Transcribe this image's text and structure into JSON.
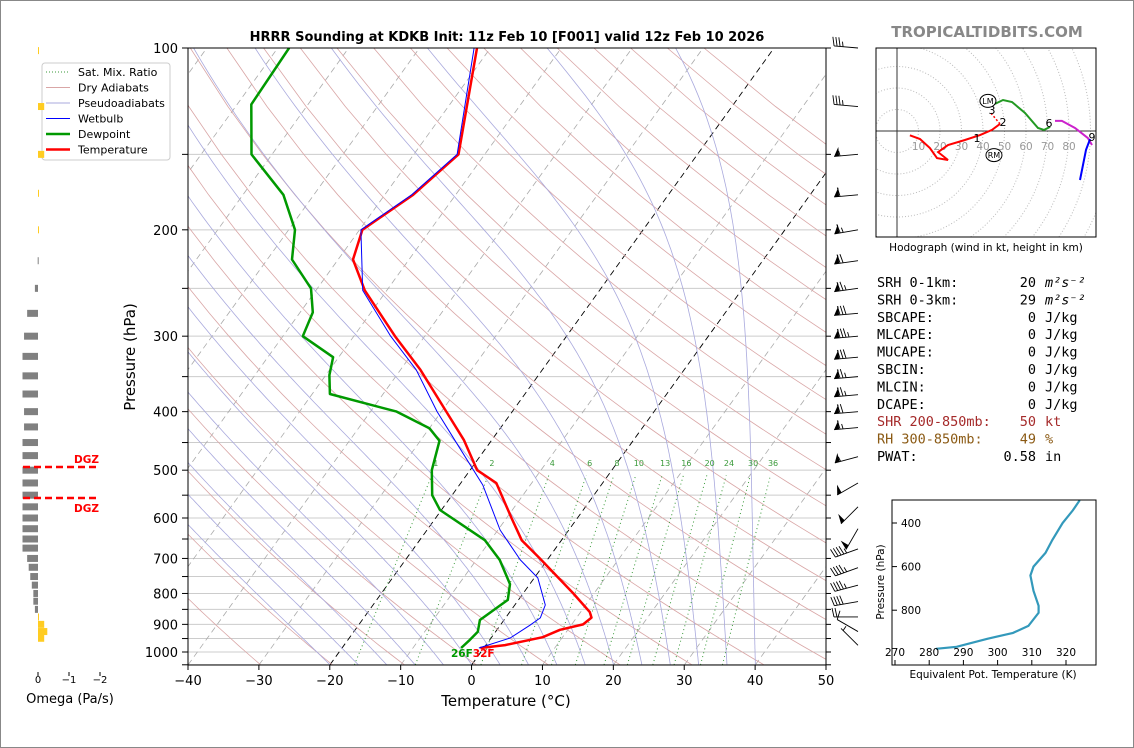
{
  "site": "TROPICALTIDBITS.COM",
  "colors": {
    "temperature": "#ff0000",
    "dewpoint": "#009900",
    "wetbulb": "#0000ff",
    "dry": "#d9a6a6",
    "moist": "#a9a9dd",
    "mixing": "#3a9a3a",
    "shear": "#a52a2a",
    "rh": "#8b5a14",
    "thetae": "#3399bb",
    "omega_pos": "#808080",
    "omega_neg": "#ffcc22"
  },
  "chart_data": [
    {
      "type": "line",
      "name": "skewt",
      "title": "HRRR Sounding at KDKB Init: 11z Feb 10 [F001] valid 12z Feb 10 2026",
      "xlabel": "Temperature (°C)",
      "ylabel": "Pressure (hPa)",
      "xlim": [
        -40,
        50
      ],
      "ylim": [
        1050,
        100
      ],
      "xticks": [
        "−40",
        "−30",
        "−20",
        "−10",
        "0",
        "10",
        "20",
        "30",
        "40",
        "50"
      ],
      "yticks": [
        "100",
        "200",
        "300",
        "400",
        "500",
        "600",
        "700",
        "800",
        "900",
        "1000"
      ],
      "legend": {
        "placement": "top-left",
        "entries": [
          "Sat. Mix. Ratio",
          "Dry Adiabats",
          "Pseudoadiabats",
          "Wetbulb",
          "Dewpoint",
          "Temperature"
        ]
      },
      "mixing_ratio_labels": [
        "1",
        "2",
        "4",
        "6",
        "8",
        "10",
        "13",
        "16",
        "20",
        "24",
        "30",
        "36"
      ],
      "surface_label": {
        "dewpoint": "26F",
        "temperature": "32F"
      },
      "series": [
        {
          "name": "Temperature",
          "points": [
            [
              100,
              -61.9
            ],
            [
              150,
              -53.7
            ],
            [
              175,
              -56
            ],
            [
              200,
              -59.6
            ],
            [
              224,
              -57.9
            ],
            [
              252,
              -53.1
            ],
            [
              300,
              -44.2
            ],
            [
              341,
              -37.2
            ],
            [
              400,
              -29.3
            ],
            [
              446,
              -23.9
            ],
            [
              500,
              -19
            ],
            [
              525,
              -15
            ],
            [
              600,
              -9.3
            ],
            [
              653,
              -5.6
            ],
            [
              700,
              -1.2
            ],
            [
              800,
              7.1
            ],
            [
              859,
              11.3
            ],
            [
              877,
              12.1
            ],
            [
              900,
              11.6
            ],
            [
              919,
              8.9
            ],
            [
              945,
              7.2
            ],
            [
              974,
              2.7
            ],
            [
              985,
              -0.5
            ]
          ]
        },
        {
          "name": "Dewpoint",
          "points": [
            [
              100,
              -88.4
            ],
            [
              124,
              -88
            ],
            [
              150,
              -82.9
            ],
            [
              175,
              -74.3
            ],
            [
              200,
              -69.1
            ],
            [
              224,
              -66.5
            ],
            [
              250,
              -60.9
            ],
            [
              274,
              -58.2
            ],
            [
              300,
              -57.2
            ],
            [
              325,
              -50.8
            ],
            [
              348,
              -49.5
            ],
            [
              374,
              -47.5
            ],
            [
              400,
              -36.3
            ],
            [
              426,
              -30
            ],
            [
              447,
              -27.3
            ],
            [
              500,
              -25.4
            ],
            [
              550,
              -22.8
            ],
            [
              582,
              -20.2
            ],
            [
              653,
              -10.8
            ],
            [
              704,
              -6.7
            ],
            [
              772,
              -2.8
            ],
            [
              820,
              -1.5
            ],
            [
              885,
              -3.4
            ],
            [
              926,
              -2.5
            ],
            [
              955,
              -2.8
            ],
            [
              985,
              -3.2
            ]
          ]
        },
        {
          "name": "Wetbulb",
          "points": [
            [
              100,
              -62.3
            ],
            [
              150,
              -53.9
            ],
            [
              175,
              -56.2
            ],
            [
              200,
              -59.8
            ],
            [
              252,
              -53.4
            ],
            [
              300,
              -44.8
            ],
            [
              341,
              -37.8
            ],
            [
              400,
              -30.6
            ],
            [
              446,
              -25.2
            ],
            [
              529,
              -16.7
            ],
            [
              628,
              -9.7
            ],
            [
              704,
              -3.8
            ],
            [
              754,
              0.5
            ],
            [
              836,
              4.3
            ],
            [
              878,
              4.9
            ],
            [
              903,
              4.2
            ],
            [
              948,
              2.7
            ],
            [
              985,
              -0.7
            ]
          ]
        }
      ],
      "winds_kt": [
        [
          100,
          275,
          35
        ],
        [
          125,
          275,
          35
        ],
        [
          150,
          265,
          55
        ],
        [
          175,
          265,
          60
        ],
        [
          200,
          260,
          65
        ],
        [
          225,
          262,
          70
        ],
        [
          250,
          262,
          75
        ],
        [
          275,
          265,
          80
        ],
        [
          300,
          265,
          85
        ],
        [
          325,
          265,
          80
        ],
        [
          350,
          265,
          75
        ],
        [
          375,
          265,
          75
        ],
        [
          400,
          265,
          70
        ],
        [
          425,
          265,
          65
        ],
        [
          475,
          255,
          55
        ],
        [
          525,
          240,
          50
        ],
        [
          575,
          225,
          50
        ],
        [
          625,
          210,
          50
        ],
        [
          675,
          250,
          45
        ],
        [
          725,
          250,
          45
        ],
        [
          775,
          255,
          45
        ],
        [
          825,
          260,
          40
        ],
        [
          875,
          270,
          20
        ],
        [
          925,
          300,
          10
        ],
        [
          975,
          315,
          5
        ]
      ]
    },
    {
      "type": "bar",
      "name": "omega",
      "xlabel": "Omega (Pa/s)",
      "xticks": [
        "0",
        "−1",
        "−2"
      ],
      "xlim": [
        0.5,
        -2.2
      ],
      "dgz_label": "DGZ",
      "dgz_bounds_hpa": [
        494,
        556
      ],
      "pressure": [
        101,
        125,
        150,
        174,
        200,
        225,
        250,
        275,
        300,
        324,
        349,
        374,
        400,
        424,
        450,
        473,
        500,
        525,
        550,
        575,
        600,
        625,
        650,
        673,
        700,
        724,
        750,
        775,
        800,
        824,
        850,
        875,
        900,
        925,
        949
      ],
      "values": [
        -0.03,
        -0.2,
        -0.2,
        -0.03,
        -0.01,
        0.01,
        0.1,
        0.35,
        0.45,
        0.5,
        0.5,
        0.5,
        0.45,
        0.45,
        0.5,
        0.5,
        0.5,
        0.5,
        0.5,
        0.5,
        0.5,
        0.5,
        0.5,
        0.5,
        0.35,
        0.3,
        0.25,
        0.2,
        0.15,
        0.15,
        0.1,
        -0.02,
        -0.2,
        -0.3,
        -0.2
      ]
    },
    {
      "type": "line",
      "name": "hodograph",
      "xlabel": "Hodograph (wind in kt, height in km)",
      "ring_labels": [
        "10",
        "20",
        "30",
        "40",
        "50",
        "60",
        "70",
        "80"
      ],
      "segments": [
        {
          "layer": "0-3km",
          "color": "#ff0000",
          "points": [
            [
              6,
              -2
            ],
            [
              10.7,
              -3.7
            ],
            [
              15.3,
              -7.9
            ],
            [
              18.6,
              -12.6
            ],
            [
              23.7,
              -13.5
            ],
            [
              19.1,
              -9.8
            ],
            [
              23.7,
              -6.5
            ],
            [
              31.6,
              -4.2
            ],
            [
              38.6,
              -1.9
            ],
            [
              44.2,
              0.5
            ],
            [
              47.9,
              3.3
            ]
          ]
        },
        {
          "layer": "2-3km dashed",
          "color": "#ff0000",
          "points": [
            [
              47.9,
              3.3
            ],
            [
              43.3,
              8.8
            ]
          ]
        },
        {
          "layer": "3-6km",
          "color": "#229922",
          "points": [
            [
              45.6,
              12.6
            ],
            [
              49.3,
              14.4
            ],
            [
              53.5,
              13.5
            ],
            [
              59.5,
              8.4
            ],
            [
              65.6,
              1.4
            ],
            [
              68.4,
              0.5
            ],
            [
              71.2,
              1.9
            ]
          ]
        },
        {
          "layer": "6-9km",
          "color": "#cc22cc",
          "points": [
            [
              73.5,
              4.7
            ],
            [
              76.7,
              4.7
            ],
            [
              82.8,
              1.4
            ],
            [
              88.8,
              -3.3
            ],
            [
              90.7,
              -6.5
            ]
          ]
        },
        {
          "layer": "9+km",
          "color": "#0000ff",
          "points": [
            [
              89.8,
              -3.7
            ],
            [
              87.9,
              -8.8
            ],
            [
              85.1,
              -22.8
            ]
          ]
        }
      ],
      "height_labels": [
        {
          "text": "1",
          "u": 37.2,
          "v": -3.3
        },
        {
          "text": "2",
          "u": 49.3,
          "v": 4.2
        },
        {
          "text": "3",
          "u": 44.2,
          "v": 9.8
        },
        {
          "text": "6",
          "u": 70.7,
          "v": 3.7
        },
        {
          "text": "9",
          "u": 90.7,
          "v": -2.8
        }
      ],
      "storm_motion": [
        {
          "text": "LM",
          "u": 42.3,
          "v": 14
        },
        {
          "text": "RM",
          "u": 45.1,
          "v": -11.2
        }
      ]
    },
    {
      "type": "line",
      "name": "theta-e",
      "xlabel": "Equivalent Pot. Temperature (K)",
      "ylabel": "Pressure (hPa)",
      "xlim": [
        268,
        328
      ],
      "ylim": [
        1030,
        296
      ],
      "xticks": [
        "270",
        "280",
        "290",
        "300",
        "310",
        "320"
      ],
      "yticks": [
        "400",
        "600",
        "800"
      ],
      "points": [
        [
          296,
          324
        ],
        [
          342,
          322
        ],
        [
          400,
          319
        ],
        [
          478,
          316
        ],
        [
          537,
          314
        ],
        [
          600,
          310.5
        ],
        [
          641,
          309.6
        ],
        [
          711,
          310.5
        ],
        [
          780,
          312
        ],
        [
          812,
          312
        ],
        [
          872,
          309
        ],
        [
          904,
          304.5
        ],
        [
          931,
          297
        ],
        [
          968,
          288
        ],
        [
          977,
          282
        ]
      ]
    }
  ],
  "indices": [
    {
      "label": "SRH 0-1km:",
      "value": "20",
      "unit": "m²s⁻²",
      "style": "normal"
    },
    {
      "label": "SRH 0-3km:",
      "value": "29",
      "unit": "m²s⁻²",
      "style": "normal"
    },
    {
      "label": "SBCAPE:",
      "value": "0",
      "unit": "J/kg",
      "style": "normal"
    },
    {
      "label": "MLCAPE:",
      "value": "0",
      "unit": "J/kg",
      "style": "normal"
    },
    {
      "label": "MUCAPE:",
      "value": "0",
      "unit": "J/kg",
      "style": "normal"
    },
    {
      "label": "SBCIN:",
      "value": "0",
      "unit": "J/kg",
      "style": "normal"
    },
    {
      "label": "MLCIN:",
      "value": "0",
      "unit": "J/kg",
      "style": "normal"
    },
    {
      "label": "DCAPE:",
      "value": "0",
      "unit": "J/kg",
      "style": "normal"
    },
    {
      "label": "SHR 200-850mb:",
      "value": "50",
      "unit": "kt",
      "style": "shear"
    },
    {
      "label": "RH 300-850mb:",
      "value": "49",
      "unit": "%",
      "style": "rh"
    },
    {
      "label": "PWAT:",
      "value": "0.58",
      "unit": "in",
      "style": "normal"
    }
  ]
}
